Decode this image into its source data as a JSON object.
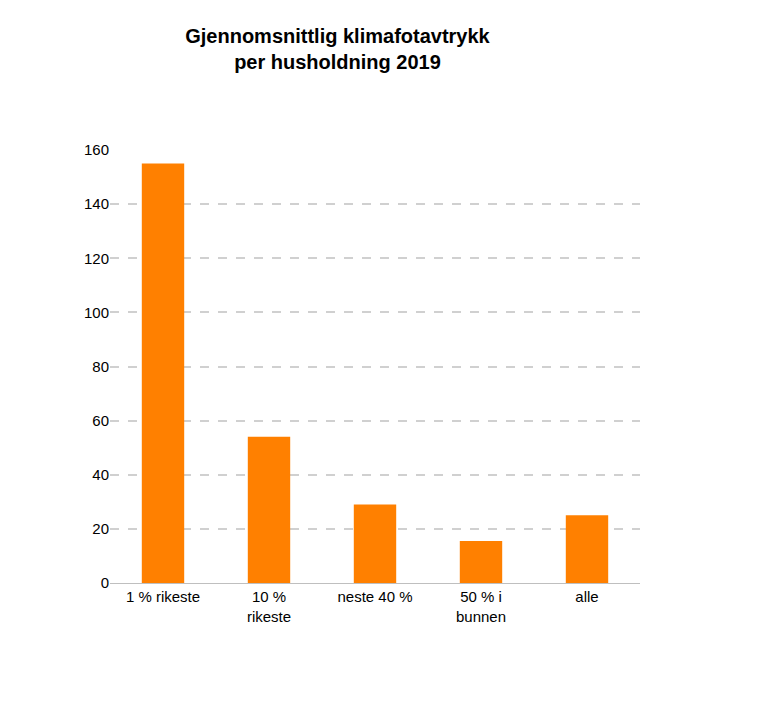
{
  "chart_data": {
    "type": "bar",
    "title": "Gjennomsnittlig klimafotavtrykk\nper husholdning 2019",
    "categories": [
      "1 % rikeste",
      "10 %\nrikeste",
      "neste 40 %",
      "50 % i\nbunnen",
      "alle"
    ],
    "values": [
      155,
      54,
      29,
      15.5,
      25
    ],
    "color": "#ff8000",
    "ylim": [
      0,
      160
    ],
    "yticks": [
      0,
      20,
      40,
      60,
      80,
      100,
      120,
      140,
      160
    ],
    "grid": true
  }
}
